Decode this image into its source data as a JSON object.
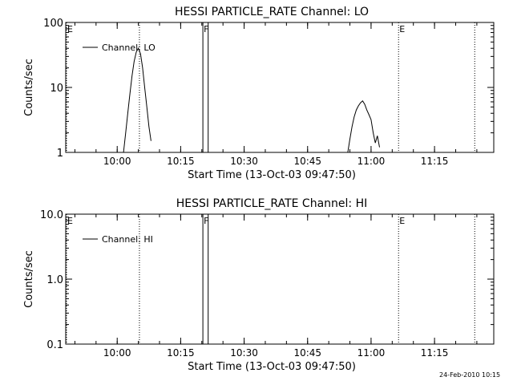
{
  "footer_timestamp": "24-Feb-2010 10:15",
  "chart_data": [
    {
      "type": "line",
      "title": "HESSI PARTICLE_RATE Channel: LO",
      "xlabel": "Start Time (13-Oct-03 09:47:50)",
      "ylabel": "Counts/sec",
      "yscale": "log",
      "xlim": [
        "09:47:50",
        "11:29:00"
      ],
      "ylim": [
        1,
        100
      ],
      "x_ticks": [
        "10:00",
        "10:15",
        "10:30",
        "10:45",
        "11:00",
        "11:15"
      ],
      "y_ticks": [
        "1",
        "10",
        "100"
      ],
      "legend": "top-left",
      "series": [
        {
          "name": "Channel: LO",
          "points": [
            [
              "10:01:30",
              1
            ],
            [
              "10:02:00",
              2
            ],
            [
              "10:02:30",
              4
            ],
            [
              "10:03:00",
              8
            ],
            [
              "10:03:30",
              15
            ],
            [
              "10:04:00",
              25
            ],
            [
              "10:04:30",
              35
            ],
            [
              "10:05:00",
              40
            ],
            [
              "10:05:30",
              33
            ],
            [
              "10:06:00",
              20
            ],
            [
              "10:06:30",
              10
            ],
            [
              "10:07:00",
              5
            ],
            [
              "10:07:30",
              2.5
            ],
            [
              "10:08:00",
              1.5
            ],
            [
              "10:08:30",
              1
            ],
            [
              "10:54:30",
              1
            ],
            [
              "10:55:00",
              1.6
            ],
            [
              "10:55:30",
              2.5
            ],
            [
              "10:56:00",
              3.5
            ],
            [
              "10:56:30",
              4.5
            ],
            [
              "10:57:00",
              5.2
            ],
            [
              "10:57:30",
              5.8
            ],
            [
              "10:58:00",
              6.2
            ],
            [
              "10:58:30",
              5.5
            ],
            [
              "10:59:00",
              4.5
            ],
            [
              "10:59:30",
              3.8
            ],
            [
              "11:00:00",
              3.2
            ],
            [
              "11:00:30",
              2.0
            ],
            [
              "11:01:00",
              1.4
            ],
            [
              "11:01:30",
              1.8
            ],
            [
              "11:02:00",
              1.2
            ],
            [
              "11:02:30",
              1
            ]
          ]
        }
      ],
      "markers": [
        {
          "label": "E",
          "time": "09:47:50",
          "style": "dotted"
        },
        {
          "label": "",
          "time": "10:05:15",
          "style": "dotted"
        },
        {
          "label": "F",
          "time": "10:20:15",
          "style": "solid"
        },
        {
          "label": "",
          "time": "10:21:30",
          "style": "solid"
        },
        {
          "label": "E",
          "time": "11:06:30",
          "style": "dotted"
        },
        {
          "label": "",
          "time": "11:24:30",
          "style": "dotted"
        }
      ]
    },
    {
      "type": "line",
      "title": "HESSI PARTICLE_RATE Channel: HI",
      "xlabel": "Start Time (13-Oct-03 09:47:50)",
      "ylabel": "Counts/sec",
      "yscale": "log",
      "xlim": [
        "09:47:50",
        "11:29:00"
      ],
      "ylim": [
        0.1,
        10
      ],
      "x_ticks": [
        "10:00",
        "10:15",
        "10:30",
        "10:45",
        "11:00",
        "11:15"
      ],
      "y_ticks": [
        "0.1",
        "1.0",
        "10.0"
      ],
      "legend": "top-left",
      "series": [
        {
          "name": "Channel: HI",
          "points": []
        }
      ],
      "markers": [
        {
          "label": "E",
          "time": "09:47:50",
          "style": "dotted"
        },
        {
          "label": "",
          "time": "10:05:15",
          "style": "dotted"
        },
        {
          "label": "F",
          "time": "10:20:15",
          "style": "solid"
        },
        {
          "label": "",
          "time": "10:21:30",
          "style": "solid"
        },
        {
          "label": "E",
          "time": "11:06:30",
          "style": "dotted"
        },
        {
          "label": "",
          "time": "11:24:30",
          "style": "dotted"
        }
      ]
    }
  ]
}
